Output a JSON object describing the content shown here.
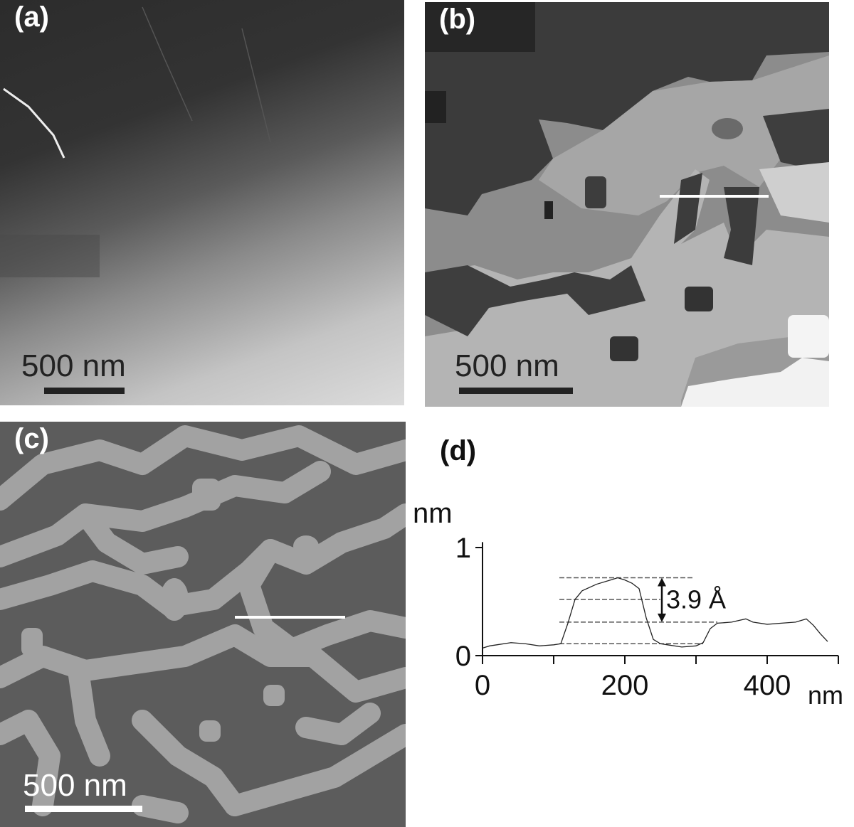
{
  "panels": {
    "a": {
      "label": "(a)",
      "scale_bar": "500 nm"
    },
    "b": {
      "label": "(b)",
      "scale_bar": "500 nm"
    },
    "c": {
      "label": "(c)",
      "scale_bar": "500 nm"
    },
    "d": {
      "label": "(d)"
    }
  },
  "chart_data": {
    "type": "line",
    "panel": "(d)",
    "xlabel": "nm",
    "ylabel": "nm",
    "xlim": [
      0,
      500
    ],
    "ylim": [
      0,
      1
    ],
    "x_ticks": [
      0,
      200,
      400
    ],
    "x_minor_ticks": [
      100,
      300,
      500
    ],
    "y_ticks": [
      0,
      1
    ],
    "annotation": "3.9 Å",
    "reference_levels": [
      0.72,
      0.52,
      0.31,
      0.11
    ],
    "grid": false,
    "series": [
      {
        "x": [
          0,
          10,
          20,
          40,
          60,
          80,
          100,
          110,
          120,
          130,
          140,
          160,
          180,
          190,
          200,
          210,
          220,
          230,
          240,
          250,
          260,
          280,
          300,
          310,
          320,
          330,
          350,
          370,
          380,
          400,
          420,
          440,
          455,
          465,
          475,
          485
        ],
        "y": [
          0.07,
          0.09,
          0.1,
          0.12,
          0.11,
          0.09,
          0.1,
          0.11,
          0.3,
          0.52,
          0.6,
          0.66,
          0.7,
          0.72,
          0.7,
          0.67,
          0.62,
          0.35,
          0.15,
          0.11,
          0.1,
          0.08,
          0.09,
          0.12,
          0.25,
          0.3,
          0.31,
          0.34,
          0.31,
          0.29,
          0.3,
          0.31,
          0.34,
          0.28,
          0.2,
          0.13
        ]
      }
    ]
  }
}
